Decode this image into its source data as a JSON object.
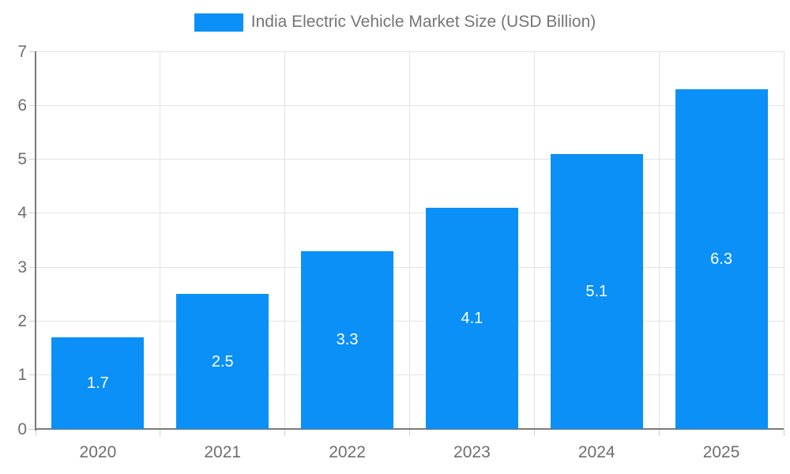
{
  "chart_data": {
    "type": "bar",
    "title": "India Electric Vehicle Market Size (USD Billion)",
    "series_name": "India Electric Vehicle Market Size (USD Billion)",
    "categories": [
      "2020",
      "2021",
      "2022",
      "2023",
      "2024",
      "2025"
    ],
    "values": [
      1.7,
      2.5,
      3.3,
      4.1,
      5.1,
      6.3
    ],
    "value_labels": [
      "1.7",
      "2.5",
      "3.3",
      "4.1",
      "5.1",
      "6.3"
    ],
    "xlabel": "",
    "ylabel": "",
    "ylim": [
      0,
      7
    ],
    "y_ticks": [
      "0",
      "1",
      "2",
      "3",
      "4",
      "5",
      "6",
      "7"
    ],
    "grid": true,
    "legend_position": "top-center"
  },
  "colors": {
    "bar": "#0A90F7",
    "grid": "#e3e3e3",
    "axis": "#7a7a7a",
    "tick": "#cfcfcf",
    "axis_text": "#6e6e6e",
    "legend_text": "#757575",
    "value_text": "#ffffff",
    "background": "#ffffff"
  }
}
